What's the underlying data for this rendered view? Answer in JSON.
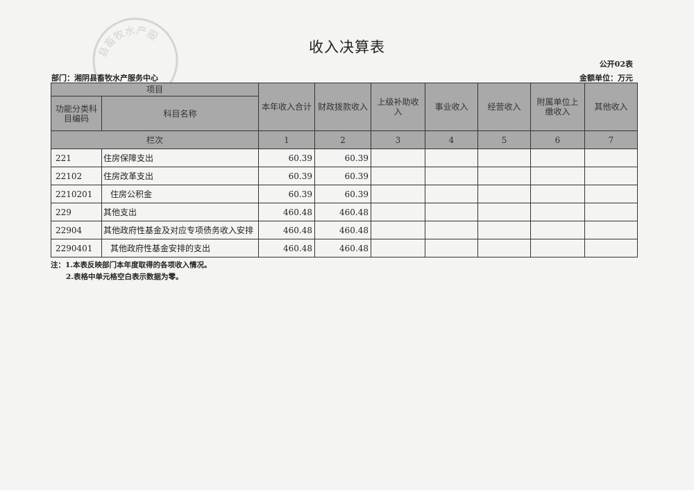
{
  "title": "收入决算表",
  "form_no": "公开02表",
  "department": "部门：湘阴县畜牧水产服务中心",
  "unit": "金额单位：万元",
  "seal_text": "县畜牧水产服",
  "header": {
    "item": "项目",
    "code": "功能分类科目编码",
    "name": "科目名称",
    "row_index": "栏次",
    "columns": [
      "本年收入合计",
      "财政拨款收入",
      "上级补助收入",
      "事业收入",
      "经营收入",
      "附属单位上缴收入",
      "其他收入"
    ],
    "column_numbers": [
      "1",
      "2",
      "3",
      "4",
      "5",
      "6",
      "7"
    ]
  },
  "rows": [
    {
      "code": "221",
      "name": "住房保障支出",
      "indent": false,
      "values": [
        "60.39",
        "60.39",
        "",
        "",
        "",
        "",
        ""
      ]
    },
    {
      "code": "22102",
      "name": "住房改革支出",
      "indent": false,
      "values": [
        "60.39",
        "60.39",
        "",
        "",
        "",
        "",
        ""
      ]
    },
    {
      "code": "2210201",
      "name": "住房公积金",
      "indent": true,
      "values": [
        "60.39",
        "60.39",
        "",
        "",
        "",
        "",
        ""
      ]
    },
    {
      "code": "229",
      "name": "其他支出",
      "indent": false,
      "values": [
        "460.48",
        "460.48",
        "",
        "",
        "",
        "",
        ""
      ]
    },
    {
      "code": "22904",
      "name": "其他政府性基金及对应专项债务收入安排",
      "indent": false,
      "values": [
        "460.48",
        "460.48",
        "",
        "",
        "",
        "",
        ""
      ]
    },
    {
      "code": "2290401",
      "name": "其他政府性基金安排的支出",
      "indent": true,
      "values": [
        "460.48",
        "460.48",
        "",
        "",
        "",
        "",
        ""
      ]
    }
  ],
  "notes": [
    "注：1.本表反映部门本年度取得的各项收入情况。",
    "2.表格中单元格空白表示数据为零。"
  ]
}
